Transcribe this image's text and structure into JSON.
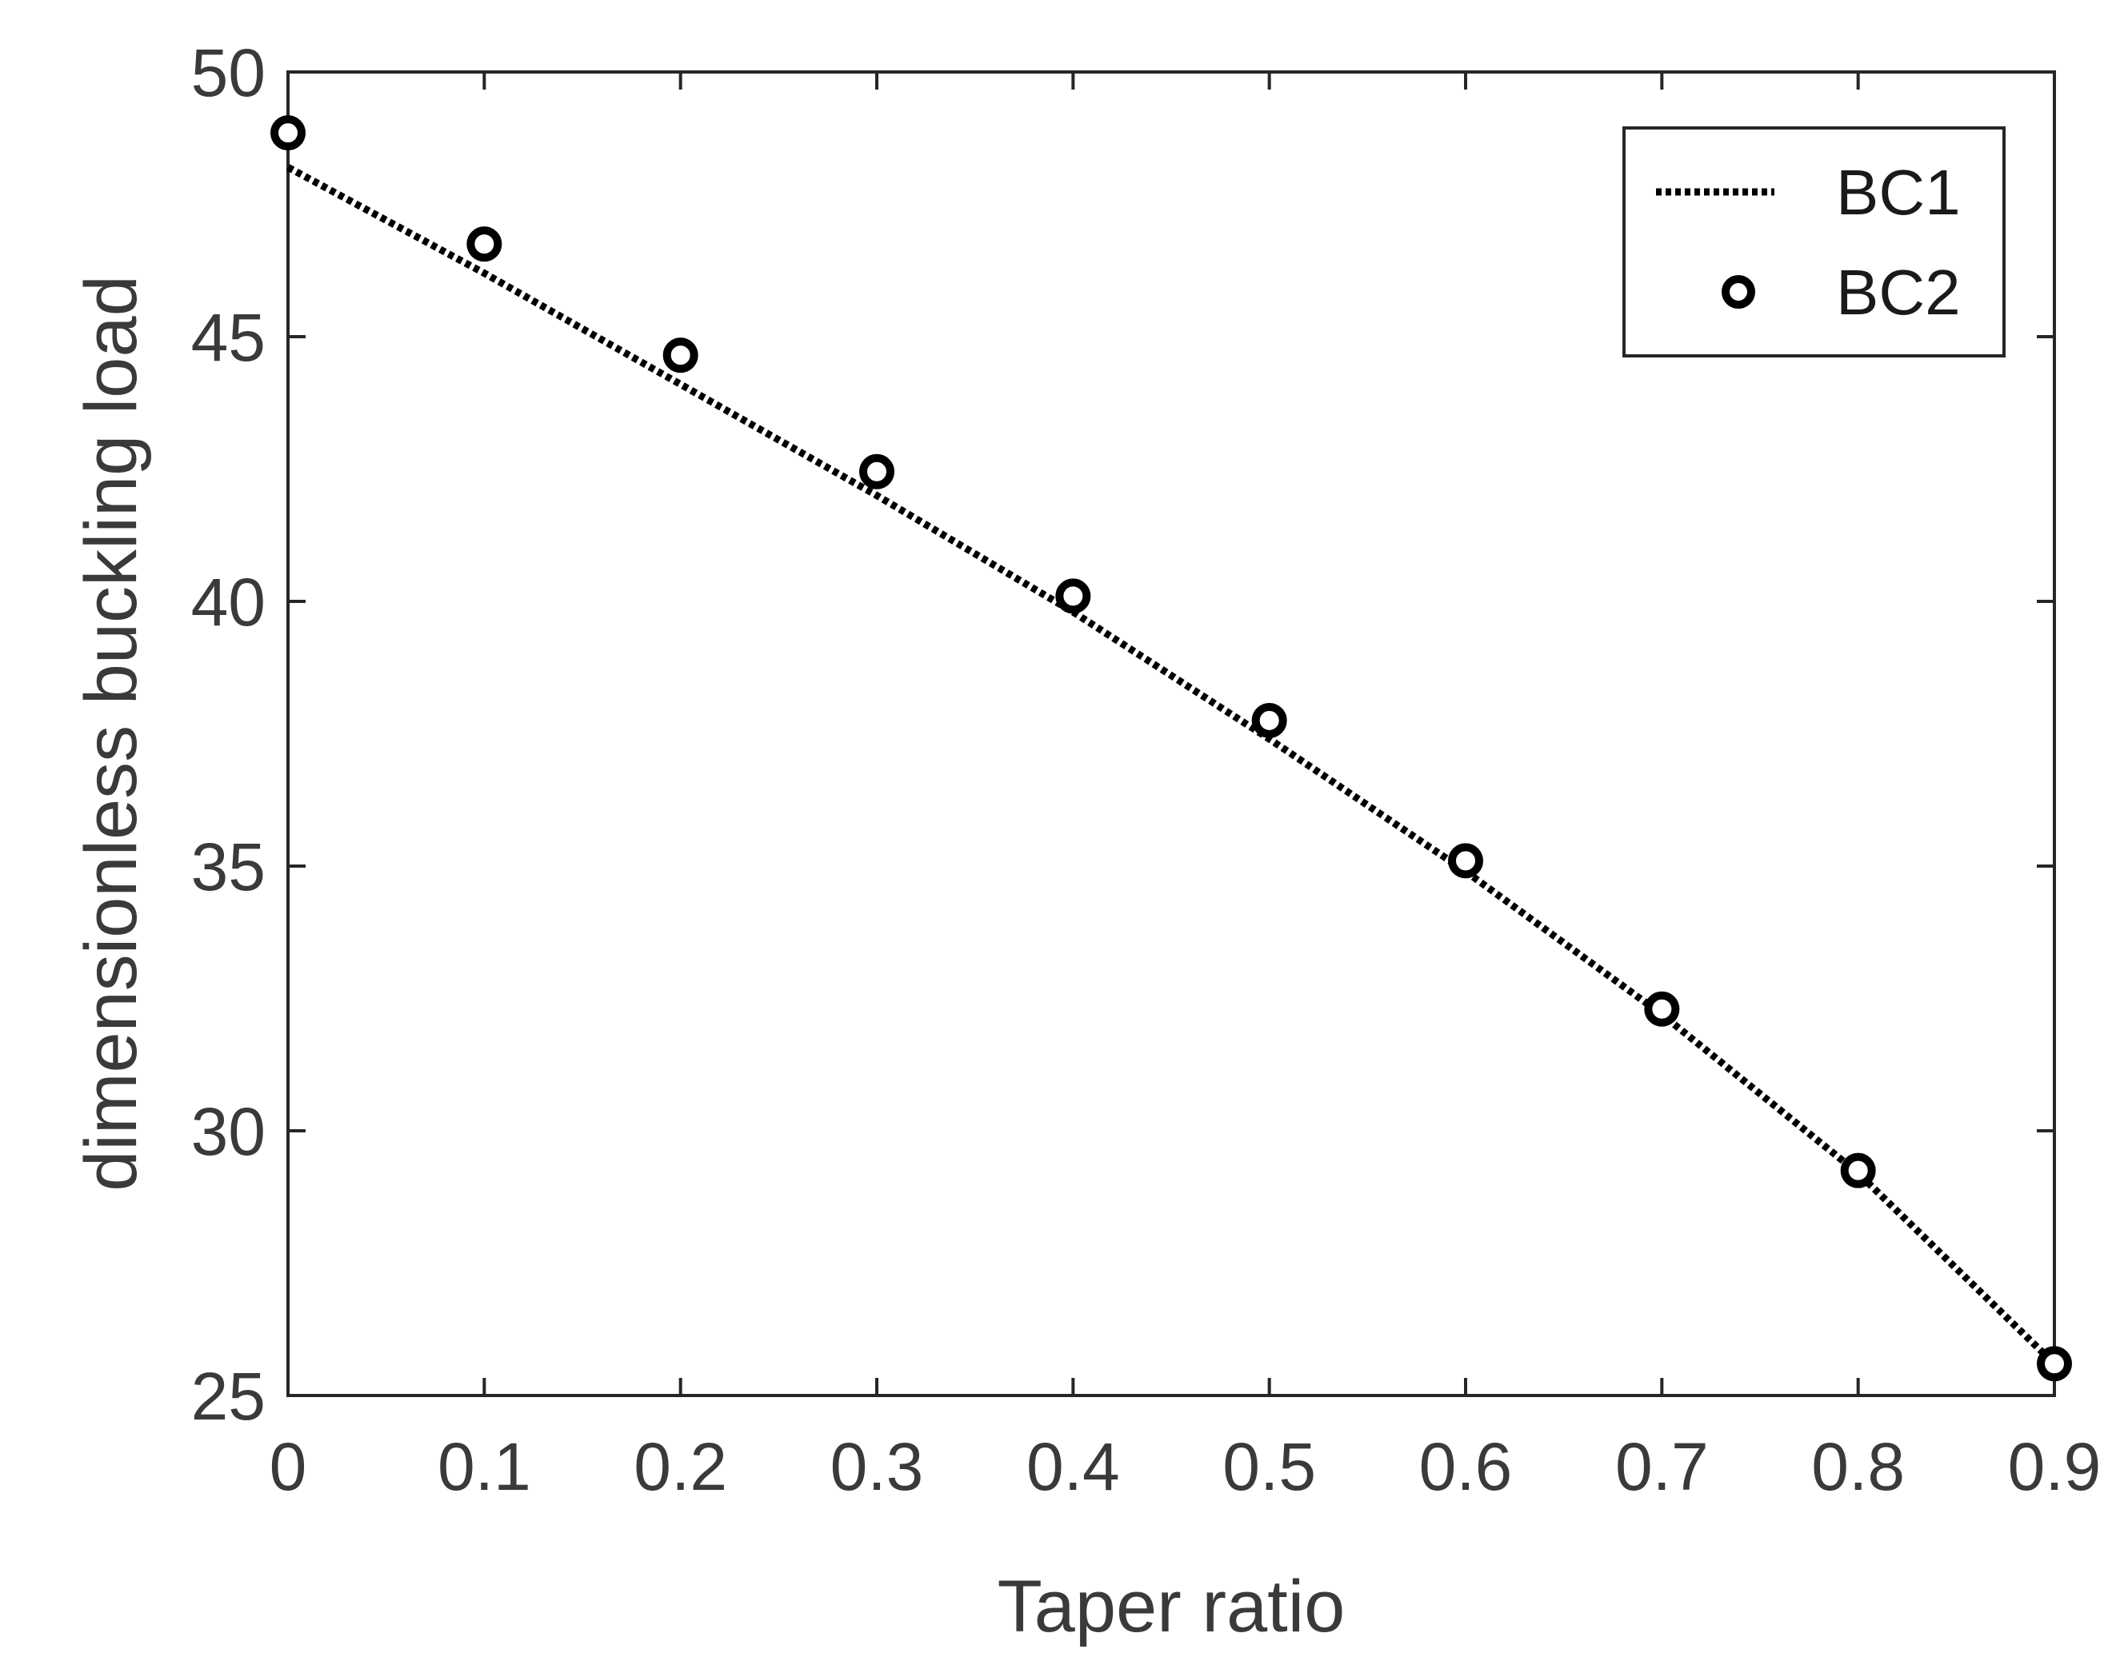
{
  "chart_data": {
    "type": "line",
    "title": "",
    "xlabel": "Taper ratio",
    "ylabel": "dimensionless buckling load",
    "xlim": [
      0,
      0.9
    ],
    "ylim": [
      25,
      50
    ],
    "x_ticks": [
      "0",
      "0.1",
      "0.2",
      "0.3",
      "0.4",
      "0.5",
      "0.6",
      "0.7",
      "0.8",
      "0.9"
    ],
    "y_ticks": [
      "25",
      "30",
      "35",
      "40",
      "45",
      "50"
    ],
    "grid": false,
    "legend_position": "top-right",
    "x": [
      0,
      0.1,
      0.2,
      0.3,
      0.4,
      0.5,
      0.6,
      0.7,
      0.8,
      0.9
    ],
    "series": [
      {
        "name": "BC1",
        "style": "dotted-line",
        "color": "#000000",
        "values": [
          48.2,
          46.2,
          44.1,
          42.0,
          39.8,
          37.4,
          34.9,
          32.2,
          29.2,
          25.6
        ]
      },
      {
        "name": "BC2",
        "style": "circle-markers",
        "color": "#000000",
        "values": [
          48.85,
          46.75,
          44.65,
          42.45,
          40.1,
          37.75,
          35.1,
          32.3,
          29.25,
          25.6
        ]
      }
    ]
  }
}
